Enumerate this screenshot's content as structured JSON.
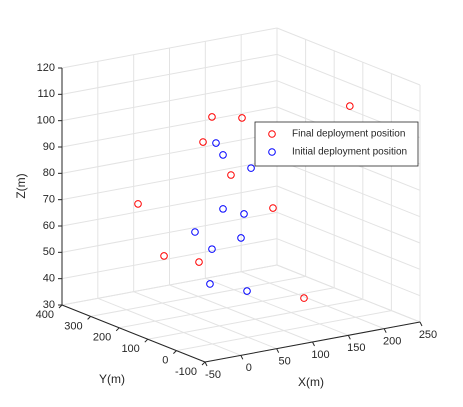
{
  "chart_data": {
    "type": "scatter3d",
    "xlabel": "X(m)",
    "ylabel": "Y(m)",
    "zlabel": "Z(m)",
    "xlim": [
      -50,
      250
    ],
    "xticks": [
      -50,
      0,
      50,
      100,
      150,
      200,
      250
    ],
    "ylim": [
      -100,
      400
    ],
    "yticks": [
      -100,
      0,
      100,
      200,
      300,
      400
    ],
    "zlim": [
      30,
      120
    ],
    "zticks": [
      30,
      40,
      50,
      60,
      70,
      80,
      90,
      100,
      110,
      120
    ],
    "grid": true,
    "legend": "upper right",
    "series": [
      {
        "name": "Final deployment position",
        "color": "#ff0000",
        "x": [
          59.5,
          101.4,
          47,
          86,
          -43.7,
          144.6,
          -7.4,
          41.4,
          192,
          187.9
        ],
        "y": [
          150,
          150,
          150,
          150,
          150,
          150,
          150,
          150,
          0,
          150
        ],
        "z": [
          106.7,
          104.2,
          97.8,
          83.3,
          78.9,
          67.8,
          57.3,
          52.5,
          110.6,
          31.4
        ]
      },
      {
        "name": "Initial deployment position",
        "color": "#0000ff",
        "x": [
          65.1,
          74.9,
          114,
          74.9,
          104.2,
          35.8,
          100,
          59.5,
          56.7,
          108.4
        ],
        "y": [
          150,
          150,
          150,
          150,
          150,
          150,
          150,
          150,
          150,
          150
        ],
        "z": [
          96.5,
          91.5,
          84.5,
          71,
          67.6,
          64.2,
          58.7,
          56.5,
          43.4,
          38.1
        ]
      }
    ]
  }
}
